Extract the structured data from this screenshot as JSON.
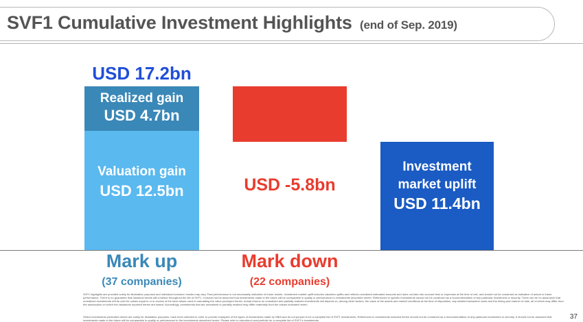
{
  "header": {
    "title": "SVF1 Cumulative Investment Highlights",
    "subtitle": "(end of Sep. 2019)"
  },
  "chart_data": {
    "type": "bar",
    "unit": "USD bn",
    "y_range": [
      -8,
      22
    ],
    "categories": [
      "Mark up",
      "Mark down",
      ""
    ],
    "category_counts": [
      "(37 companies)",
      "(22 companies)",
      ""
    ],
    "segments": [
      {
        "key": "valuation",
        "category": "Mark up",
        "base": 0,
        "value": 12.5,
        "label": "Valuation gain",
        "value_label": "USD 12.5bn",
        "color": "#5ab9ef"
      },
      {
        "key": "realized",
        "category": "Mark up",
        "base": 12.5,
        "value": 4.7,
        "label": "Realized gain",
        "value_label": "USD 4.7bn",
        "color": "#3a88b8"
      },
      {
        "key": "markdown",
        "category": "Mark down",
        "base": 17.2,
        "value": -5.8,
        "label": "",
        "value_label": "",
        "color": "#e83c2e"
      },
      {
        "key": "uplift",
        "category": "",
        "base": 0,
        "value": 11.4,
        "label": "Investment market uplift",
        "value_label": "USD 11.4bn",
        "color": "#1a5bc4"
      }
    ],
    "annotations": {
      "markup_total": "USD 17.2bn",
      "markdown_total": "USD -5.8bn"
    },
    "colors": {
      "markup_text": "#3a88b8",
      "markdown_text": "#e83c2e",
      "total_text": "#1f4ed8"
    }
  },
  "footnotes": {
    "note1": "SVF1 highlights are provided solely for illustrative purposes and individual investors' results may vary. Past performance is not necessarily indicative of future results. Investment market uplift includes valuation uplifts and reflects unrealized estimated amounts and does not take into account fees or expenses at the time of exit, and should not be construed as indicative of actual or future performance. There is no guarantee that historical trends will continue throughout the life of SVF1. It should not be assumed that investments made in the future will be comparable in quality or performance to investments described herein. References to specific investments should not be construed as a recommendation of any particular investment or security. There can be no assurance that unrealized investments will be sold for values equal to or in excess of the total values used in calculating the value portrayed herein. Actual returns on unrealized and partially realized investments will depend on, among other factors, the value of the assets and market conditions at the time of disposition, any related transaction costs and the timing and manner of sale, all of which may differ from the assumption on which the valuations reported herein are based. Accordingly, investments that are unrealized or partially realized may differ materially from the values indicated herein.",
    "note2": "Select investments presented herein are solely for illustrative purposes, have been selected in order to provide examples of the types of investments made by SBIA and do not purport to be a complete list of SVF1 investments. References to investments included herein should not be construed as a recommendation of any particular investment or security. It should not be assumed that investments made in the future will be comparable in quality or performance to the investments described herein. Please refer to visionfund.com/portfolio for a complete list of SVF1's investments."
  },
  "page": {
    "number": "37"
  }
}
